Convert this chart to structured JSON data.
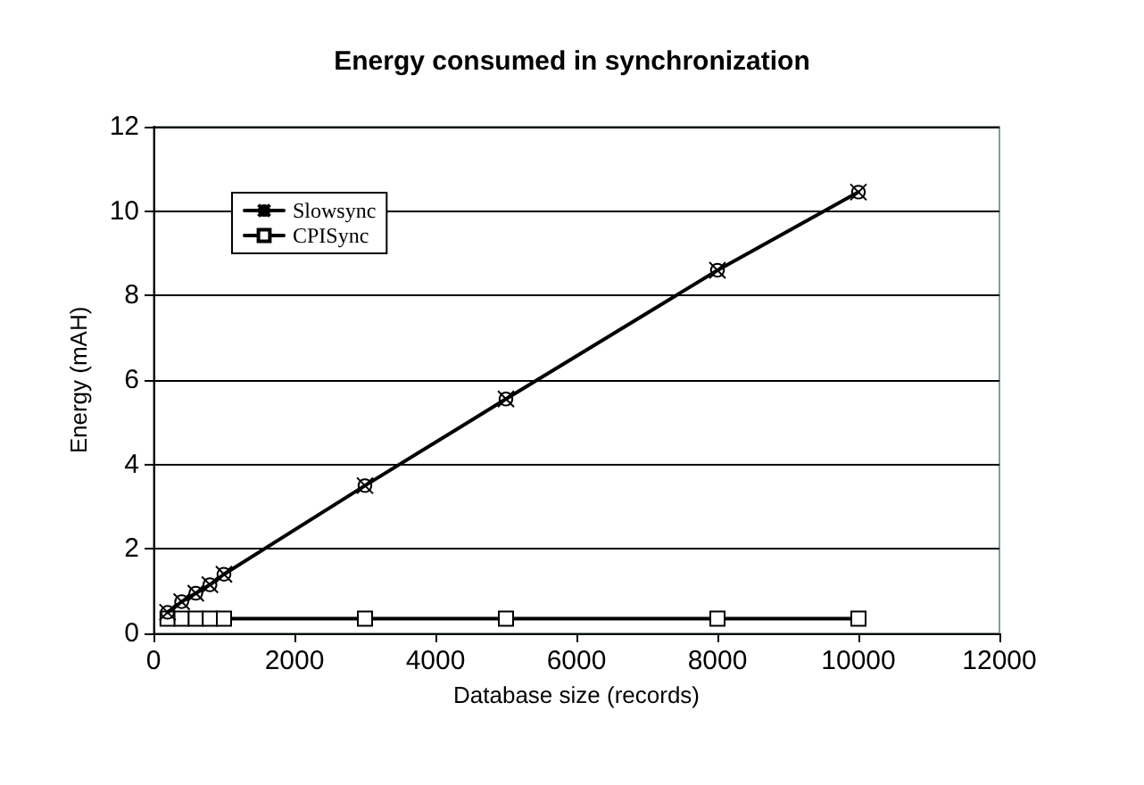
{
  "chart_data": {
    "type": "line",
    "title": "Energy consumed in synchronization",
    "xlabel": "Database size (records)",
    "ylabel": "Energy (mAH)",
    "x": [
      200,
      400,
      600,
      800,
      1000,
      3000,
      5000,
      8000,
      10000
    ],
    "series": [
      {
        "name": "Slowsync",
        "color": "#000000",
        "marker": "cross",
        "values": [
          0.5,
          0.75,
          0.95,
          1.15,
          1.4,
          3.5,
          5.55,
          8.6,
          10.45
        ]
      },
      {
        "name": "CPISync",
        "color": "#000000",
        "marker": "square",
        "values": [
          0.35,
          0.35,
          0.35,
          0.35,
          0.35,
          0.35,
          0.35,
          0.35,
          0.35
        ]
      }
    ],
    "xlim": [
      0,
      12000
    ],
    "xticks": [
      0,
      2000,
      4000,
      6000,
      8000,
      10000,
      12000
    ],
    "ylim": [
      0,
      12
    ],
    "yticks": [
      0,
      2,
      4,
      6,
      8,
      10,
      12
    ],
    "grid": "y",
    "legend": "top left",
    "line_style": "solid"
  }
}
